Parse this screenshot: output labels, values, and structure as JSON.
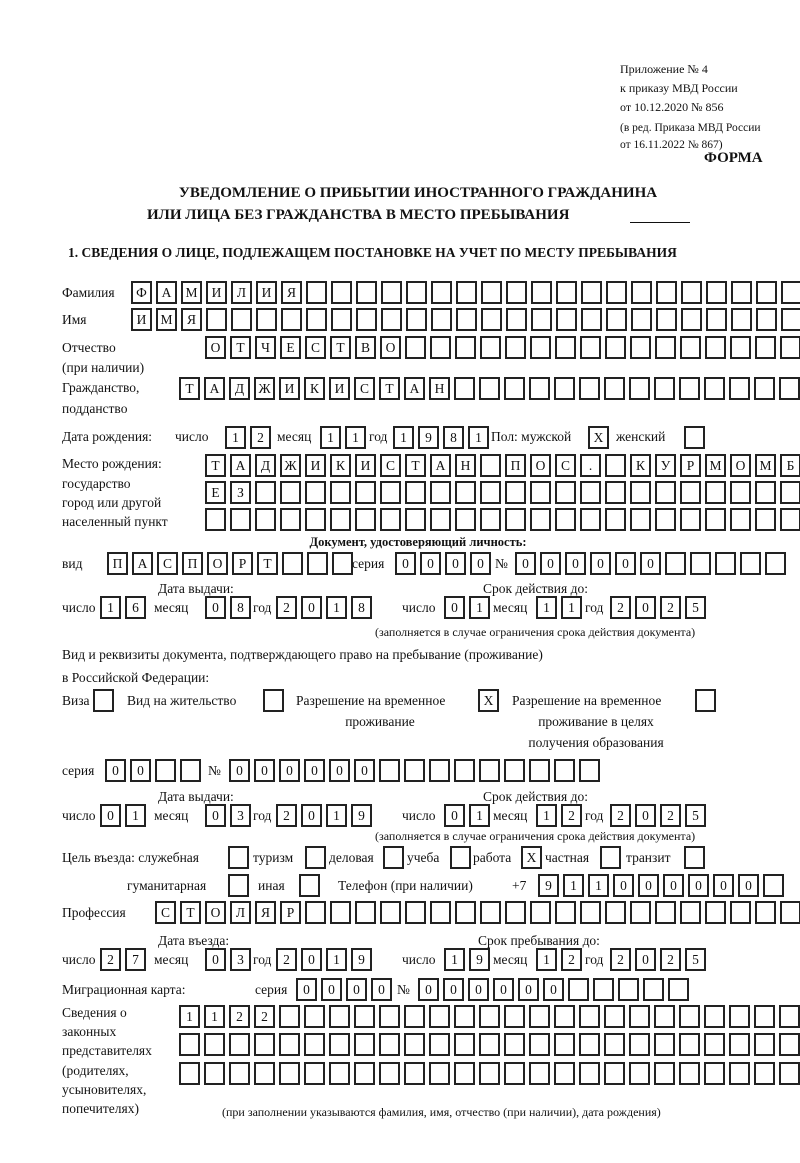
{
  "header": {
    "appendix": [
      "Приложение № 4",
      "к приказу МВД России",
      "от 10.12.2020 № 856"
    ],
    "amendment": [
      "(в ред. Приказа МВД России",
      "от 16.11.2022 № 867)"
    ],
    "form_label": "ФОРМА",
    "title": [
      "УВЕДОМЛЕНИЕ О ПРИБЫТИИ ИНОСТРАННОГО ГРАЖДАНИНА",
      "ИЛИ ЛИЦА БЕЗ ГРАЖДАНСТВА В МЕСТО ПРЕБЫВАНИЯ"
    ],
    "section1": "1. СВЕДЕНИЯ О ЛИЦЕ, ПОДЛЕЖАЩЕМ ПОСТАНОВКЕ НА УЧЕТ ПО МЕСТУ ПРЕБЫВАНИЯ"
  },
  "labels": {
    "surname": "Фамилия",
    "name": "Имя",
    "patronymic": [
      "Отчество",
      "(при наличии)"
    ],
    "citizenship": [
      "Гражданство,",
      "подданство"
    ],
    "birth_date": "Дата рождения:",
    "day": "число",
    "month": "месяц",
    "year": "год",
    "sex": "Пол: мужской",
    "female": "женский",
    "birth_place": [
      "Место рождения:",
      "государство",
      "город или другой",
      "населенный пункт"
    ],
    "id_doc": "Документ, удостоверяющий личность:",
    "kind": "вид",
    "series": "серия",
    "number": "№",
    "issue_date": "Дата выдачи:",
    "valid_until": "Срок действия до:",
    "valid_note": "(заполняется в случае ограничения срока действия документа)",
    "stay_doc": [
      "Вид и реквизиты документа, подтверждающего право на пребывание (проживание)",
      "в Российской Федерации:"
    ],
    "visa": "Виза",
    "residence": "Вид на жительство",
    "trp": [
      "Разрешение на временное",
      "проживание"
    ],
    "trp_edu": [
      "Разрешение на временное",
      "проживание в целях",
      "получения образования"
    ],
    "purpose": "Цель въезда: служебная",
    "tourism": "туризм",
    "business": "деловая",
    "study": "учеба",
    "work": "работа",
    "private": "частная",
    "transit": "транзит",
    "humanitarian": "гуманитарная",
    "other": "иная",
    "phone": "Телефон (при наличии)",
    "phone_prefix": "+7",
    "profession": "Профессия",
    "entry_date": "Дата въезда:",
    "stay_until": "Срок пребывания до:",
    "migration_card": "Миграционная карта:",
    "representatives": [
      "Сведения о",
      "законных",
      "представителях",
      "(родителях,",
      "усыновителях,",
      "попечителях)"
    ],
    "representatives_note": "(при заполнении указываются фамилия, имя, отчество (при наличии), дата рождения)"
  },
  "fields": {
    "surname": "ФАМИЛИЯ",
    "name": "ИМЯ",
    "patronymic": "ОТЧЕСТВО",
    "citizenship": "ТАДЖИКИСТАН",
    "birth": {
      "day": "12",
      "month": "11",
      "year": "1981"
    },
    "sex_male": "X",
    "sex_female": "",
    "birth_place": [
      "ТАДЖИКИСТАН ПОС. КУРМОМБ",
      "ЕЗ",
      ""
    ],
    "id_doc": {
      "kind": "ПАСПОРТ",
      "series": "0000",
      "number": "000000",
      "issue": {
        "day": "16",
        "month": "08",
        "year": "2018"
      },
      "valid": {
        "day": "01",
        "month": "11",
        "year": "2025"
      }
    },
    "stay_doc": {
      "visa": "",
      "residence": "",
      "trp": "X",
      "trp_edu": "",
      "series": "00",
      "number": "000000",
      "issue": {
        "day": "01",
        "month": "03",
        "year": "2019"
      },
      "valid": {
        "day": "01",
        "month": "12",
        "year": "2025"
      }
    },
    "purpose": {
      "official": "",
      "tourism": "",
      "business": "",
      "study": "",
      "work": "X",
      "private": "",
      "transit": "",
      "humanitarian": "",
      "other": ""
    },
    "phone": "911000000",
    "profession": "СТОЛЯР",
    "entry": {
      "day": "27",
      "month": "03",
      "year": "2019"
    },
    "stay_until": {
      "day": "19",
      "month": "12",
      "year": "2025"
    },
    "migration_card": {
      "series": "0000",
      "number": "000000"
    },
    "representatives": [
      "1122",
      "",
      ""
    ]
  }
}
